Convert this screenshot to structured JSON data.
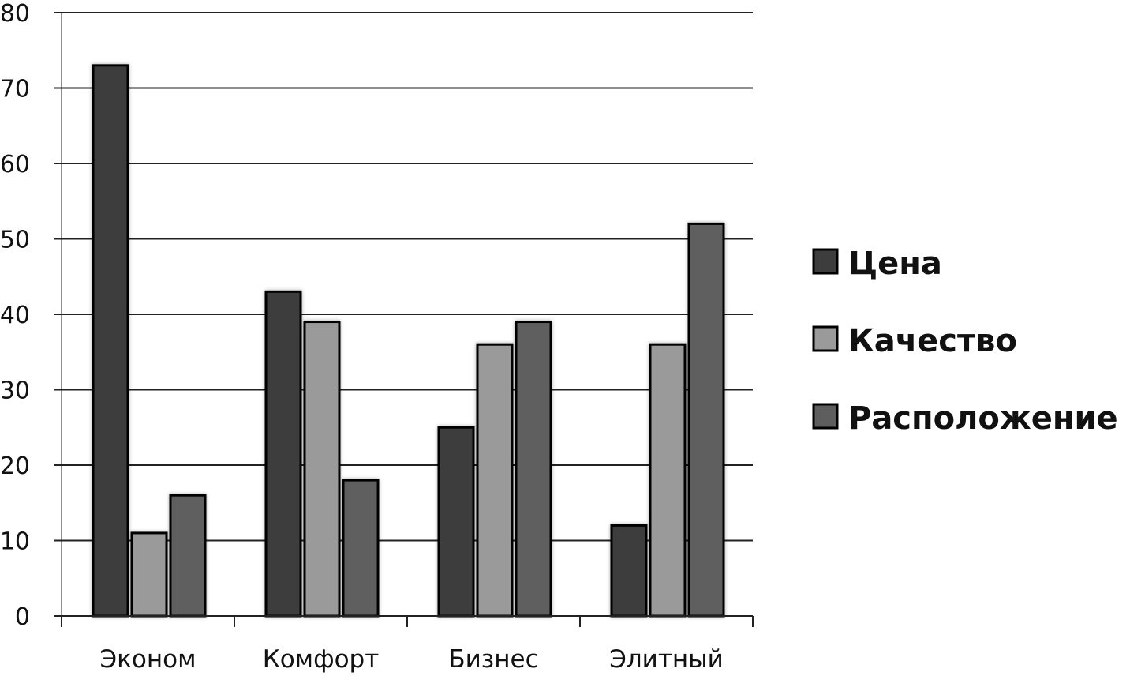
{
  "chart_data": {
    "type": "bar",
    "categories": [
      "Эконом",
      "Комфорт",
      "Бизнес",
      "Элитный"
    ],
    "series": [
      {
        "name": "Цена",
        "values": [
          73,
          43,
          25,
          12
        ],
        "color": "#3d3d3d"
      },
      {
        "name": "Качество",
        "values": [
          11,
          39,
          36,
          36
        ],
        "color": "#9a9a9a"
      },
      {
        "name": "Расположение",
        "values": [
          16,
          18,
          39,
          52
        ],
        "color": "#5e5e5e"
      }
    ],
    "yticks": [
      "0",
      "10",
      "20",
      "30",
      "40",
      "50",
      "60",
      "70",
      "80"
    ],
    "ylim": [
      0,
      80
    ],
    "grid": true,
    "legend": "right",
    "title": "",
    "xlabel": "",
    "ylabel": ""
  }
}
